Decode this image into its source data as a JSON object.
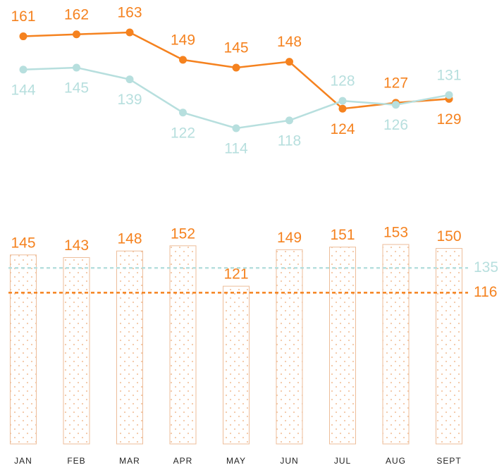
{
  "chart_data": [
    {
      "type": "line",
      "series": [
        {
          "color": "#f5821f",
          "values": [
            161,
            162,
            163,
            149,
            145,
            148,
            124,
            127,
            129
          ]
        },
        {
          "color": "#b7dfde",
          "values": [
            144,
            145,
            139,
            122,
            114,
            118,
            128,
            126,
            131
          ]
        }
      ]
    },
    {
      "type": "bar",
      "categories": [
        "JAN",
        "FEB",
        "MAR",
        "APR",
        "MAY",
        "JUN",
        "JUL",
        "AUG",
        "SEPT"
      ],
      "values": [
        145,
        143,
        148,
        152,
        121,
        149,
        151,
        153,
        150
      ],
      "color": "#f5821f",
      "reference_lines": [
        {
          "value": 135,
          "color": "#b7dfde"
        },
        {
          "value": 116,
          "color": "#f5821f"
        }
      ]
    }
  ]
}
